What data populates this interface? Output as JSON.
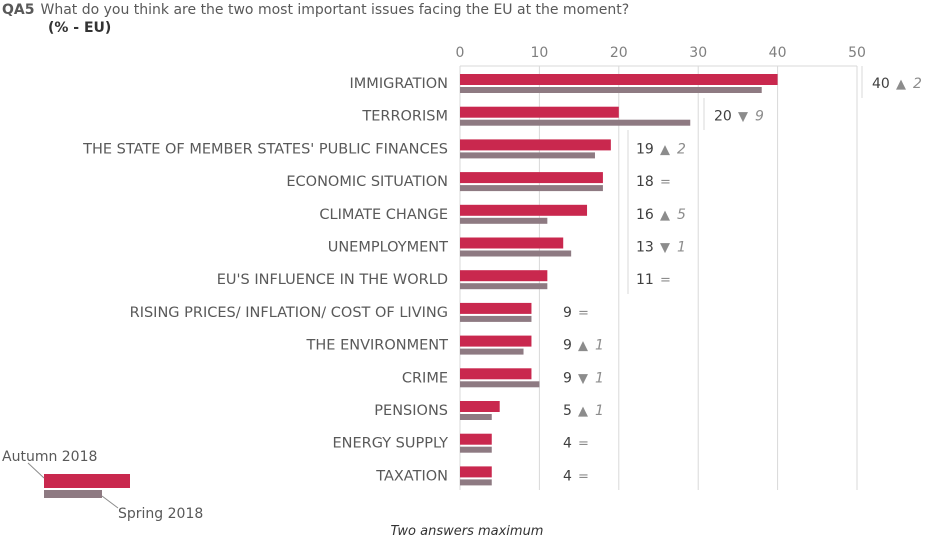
{
  "header": {
    "code": "QA5",
    "title": "What do you think are the two most important issues facing the EU at the moment?",
    "subtitle": "(% - EU)"
  },
  "footnote": "Two answers maximum",
  "colors": {
    "autumn": "#C9284E",
    "spring": "#8E7A82",
    "up": "#8C8C8C",
    "down": "#8C8C8C"
  },
  "chart_data": {
    "type": "bar",
    "orientation": "horizontal",
    "xlim": [
      0,
      50
    ],
    "xticks": [
      0,
      10,
      20,
      30,
      40,
      50
    ],
    "categories": [
      "IMMIGRATION",
      "TERRORISM",
      "THE STATE OF MEMBER STATES' PUBLIC FINANCES",
      "ECONOMIC SITUATION",
      "CLIMATE CHANGE",
      "UNEMPLOYMENT",
      "EU'S INFLUENCE IN THE WORLD",
      "RISING PRICES/ INFLATION/ COST OF LIVING",
      "THE ENVIRONMENT",
      "CRIME",
      "PENSIONS",
      "ENERGY SUPPLY",
      "TAXATION"
    ],
    "series": [
      {
        "name": "Autumn 2018",
        "values": [
          40,
          20,
          19,
          18,
          16,
          13,
          11,
          9,
          9,
          9,
          5,
          4,
          4
        ]
      },
      {
        "name": "Spring 2018",
        "values": [
          38,
          29,
          17,
          18,
          11,
          14,
          11,
          9,
          8,
          10,
          4,
          4,
          4
        ]
      }
    ],
    "changes": [
      {
        "dir": "up",
        "value": "2"
      },
      {
        "dir": "down",
        "value": "9"
      },
      {
        "dir": "up",
        "value": "2"
      },
      {
        "dir": "eq",
        "value": ""
      },
      {
        "dir": "up",
        "value": "5"
      },
      {
        "dir": "down",
        "value": "1"
      },
      {
        "dir": "eq",
        "value": ""
      },
      {
        "dir": "eq",
        "value": ""
      },
      {
        "dir": "up",
        "value": "1"
      },
      {
        "dir": "down",
        "value": "1"
      },
      {
        "dir": "up",
        "value": "1"
      },
      {
        "dir": "eq",
        "value": ""
      },
      {
        "dir": "eq",
        "value": ""
      }
    ],
    "symbols": {
      "up": "▲",
      "down": "▼",
      "eq": "="
    },
    "legend": {
      "position": "bottom-left",
      "autumn_label": "Autumn 2018",
      "spring_label": "Spring 2018"
    }
  }
}
